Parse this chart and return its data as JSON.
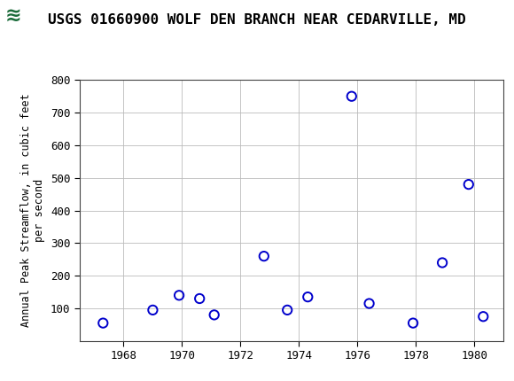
{
  "title": "USGS 01660900 WOLF DEN BRANCH NEAR CEDARVILLE, MD",
  "ylabel_line1": "Annual Peak Streamflow, in cubic feet",
  "ylabel_line2": "per second",
  "xlim": [
    1966.5,
    1981.0
  ],
  "ylim": [
    0,
    800
  ],
  "yticks": [
    100,
    200,
    300,
    400,
    500,
    600,
    700,
    800
  ],
  "xticks": [
    1968,
    1970,
    1972,
    1974,
    1976,
    1978,
    1980
  ],
  "years": [
    1967.3,
    1969.0,
    1969.9,
    1970.6,
    1971.1,
    1972.8,
    1973.6,
    1974.3,
    1975.8,
    1976.4,
    1977.9,
    1978.9,
    1979.8,
    1980.3
  ],
  "flows": [
    55,
    95,
    140,
    130,
    80,
    260,
    95,
    135,
    750,
    115,
    55,
    240,
    480,
    75
  ],
  "marker_color": "#0000CC",
  "marker_size": 55,
  "grid_color": "#BBBBBB",
  "plot_bg": "#FFFFFF",
  "fig_bg": "#FFFFFF",
  "header_bg": "#1B6B3A",
  "title_fontsize": 11.5,
  "ylabel_fontsize": 8.5,
  "tick_fontsize": 9
}
